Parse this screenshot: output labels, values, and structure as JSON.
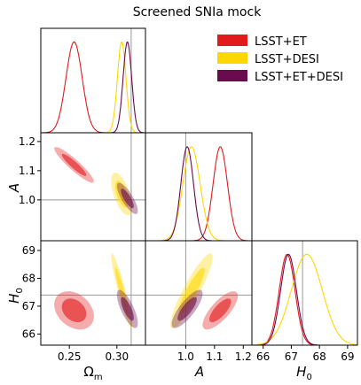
{
  "title": "Screened SNIa mock",
  "colors": {
    "lsst_et": "#e31a1c",
    "lsst_desi": "#ffd700",
    "lsst_et_desi": "#6a0b4e",
    "ref_line": "#999999"
  },
  "legend": {
    "placement": "top-right",
    "items": [
      "LSST+ET",
      "LSST+DESI",
      "LSST+ET+DESI"
    ]
  },
  "axes": {
    "om_label": "Ω",
    "om_sub": "m",
    "a_label": "A",
    "h0_label": "H",
    "h0_sub": "0"
  },
  "chart_data": {
    "type": "corner",
    "parameters": [
      "Omega_m",
      "A",
      "H0"
    ],
    "reference_values": {
      "Omega_m": 0.315,
      "A": 1.0,
      "H0": 67.4
    },
    "ranges": {
      "Omega_m": [
        0.22,
        0.33
      ],
      "A": [
        0.86,
        1.23
      ],
      "H0": [
        65.6,
        69.35
      ]
    },
    "ticks": {
      "Omega_m": [
        0.25,
        0.3
      ],
      "A": [
        1.0,
        1.1,
        1.2
      ],
      "A_x": [
        1.0,
        1.1,
        1.2
      ],
      "H0_y": [
        66,
        67,
        68,
        69
      ],
      "H0_x": [
        66,
        67,
        68,
        69
      ]
    },
    "tick_labels": {
      "Omega_m": [
        "0.25",
        "0.30"
      ],
      "A": [
        "1.0",
        "1.1",
        "1.2"
      ],
      "A_x": [
        "1.0",
        "1.1",
        "1.2"
      ],
      "H0_y": [
        "66",
        "67",
        "68",
        "69"
      ],
      "H0_x": [
        "66",
        "67",
        "68",
        "69"
      ]
    },
    "series": [
      {
        "name": "LSST+ET",
        "mean": {
          "Omega_m": 0.255,
          "A": 1.12,
          "H0": 66.85
        },
        "sigma": {
          "Omega_m": 0.0085,
          "A": 0.025,
          "H0": 0.28
        },
        "corr": {
          "Omega_m_A": -0.92,
          "Omega_m_H0": -0.3,
          "A_H0": 0.75
        }
      },
      {
        "name": "LSST+DESI",
        "mean": {
          "Omega_m": 0.305,
          "A": 1.02,
          "H0": 67.55
        },
        "sigma": {
          "Omega_m": 0.0045,
          "A": 0.03,
          "H0": 0.55
        },
        "corr": {
          "Omega_m_A": -0.6,
          "Omega_m_H0": -0.93,
          "A_H0": 0.9
        }
      },
      {
        "name": "LSST+ET+DESI",
        "mean": {
          "Omega_m": 0.311,
          "A": 1.005,
          "H0": 66.9
        },
        "sigma": {
          "Omega_m": 0.0045,
          "A": 0.022,
          "H0": 0.28
        },
        "corr": {
          "Omega_m_A": -0.8,
          "Omega_m_H0": -0.75,
          "A_H0": 0.8
        }
      }
    ]
  }
}
